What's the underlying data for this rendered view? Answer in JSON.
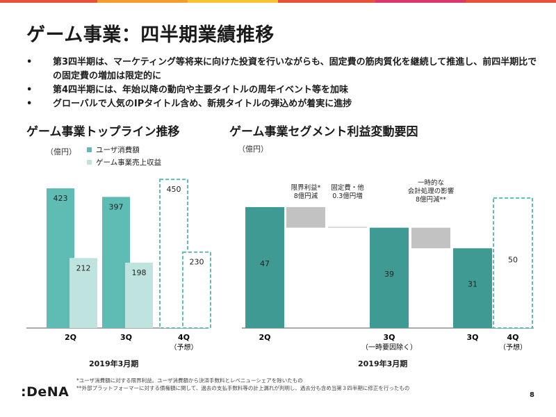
{
  "page": {
    "title": "ゲーム事業：四半期業績推移",
    "bullets": [
      "第3四半期は、マーケティング等将来に向けた投資を行いながらも、固定費の筋肉質化を継続して推進し、前四半期比での固定費の増加は限定的に",
      "第4四半期には、年始以降の動向や主要タイトルの周年イベント等を加味",
      "グローバルで人気のIPタイトル含め、新規タイトルの弾込めが着実に進捗"
    ],
    "footnotes": [
      "*ユーザ消費額に対する限界利益。ユーザ消費額から決済手数料とレベニューシェアを除いたもの",
      "**外部プラットフォーマーに対する債権額に関して、過去の支払手数料等の計上漏れが判明し、過去分も含め当第３四半期に修正を行ったもの"
    ],
    "logo": ":DeNA",
    "page_number": "8",
    "colors": {
      "teal": "#5ebcb4",
      "light_teal": "#bfe4e0",
      "dark_teal": "#3e9a92",
      "gray": "#c2c2c2",
      "dashed": "#5ebcb4"
    },
    "top_bar_colors": [
      "#e8503a",
      "#f39c2f",
      "#f7c531",
      "#e8503a",
      "#d9386c",
      "#e8503a"
    ]
  },
  "chart_data": [
    {
      "type": "bar",
      "title": "ゲーム事業トップライン推移",
      "unit": "（億円）",
      "categories": [
        "2Q",
        "3Q",
        "4Q"
      ],
      "category_notes": [
        "",
        "",
        "（予想）"
      ],
      "xlabel": "2019年3月期",
      "series": [
        {
          "name": "ユーザ消費額",
          "values": [
            423,
            397,
            450
          ]
        },
        {
          "name": "ゲーム事業売上収益",
          "values": [
            212,
            198,
            230
          ]
        }
      ],
      "forecast_category": "4Q",
      "ylim": [
        0,
        460
      ],
      "legend_position": "top-left"
    },
    {
      "type": "waterfall",
      "title": "ゲーム事業セグメント利益変動要因",
      "unit": "（億円）",
      "xlabel": "2019年3月期",
      "bars": [
        {
          "label": "2Q",
          "value": 47,
          "kind": "total"
        },
        {
          "label": "",
          "value": -8,
          "kind": "delta",
          "annotation": [
            "限界利益*",
            "8億円減"
          ]
        },
        {
          "label": "",
          "value": 0.3,
          "kind": "delta",
          "annotation": [
            "固定費・他",
            "0.3億円増"
          ]
        },
        {
          "label": "3Q",
          "sublabel": "（一時要因除く）",
          "value": 39,
          "kind": "total"
        },
        {
          "label": "",
          "value": -8,
          "kind": "delta",
          "annotation": [
            "一時的な",
            "会計処理の影響",
            "8億円減**"
          ]
        },
        {
          "label": "3Q",
          "value": 31,
          "kind": "total"
        },
        {
          "label": "4Q",
          "sublabel": "（予想）",
          "value": 50,
          "kind": "forecast"
        }
      ],
      "ylim": [
        0,
        52
      ]
    }
  ]
}
